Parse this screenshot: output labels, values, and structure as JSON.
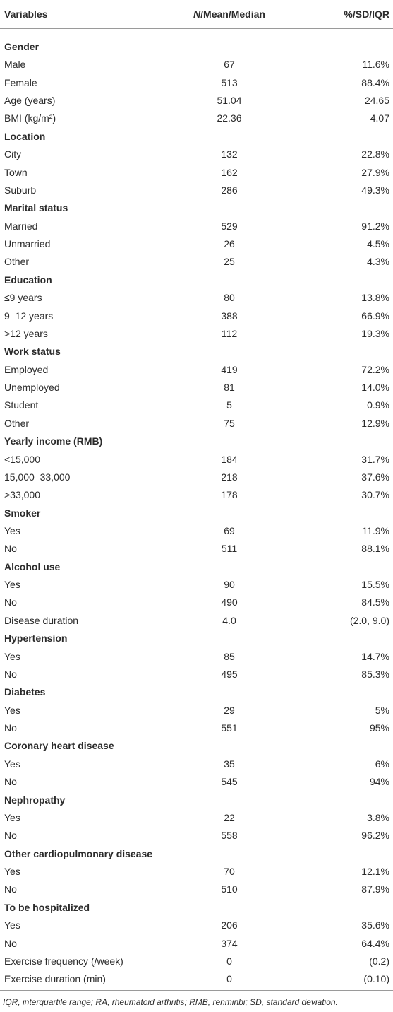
{
  "header": [
    "Variables",
    [
      "N",
      "/Mean/Median"
    ],
    "%/SD/IQR"
  ],
  "rows": [
    [
      "Gender"
    ],
    [
      "Male",
      "67",
      "11.6%"
    ],
    [
      "Female",
      "513",
      "88.4%"
    ],
    [
      "Age (years)",
      "51.04",
      "24.65"
    ],
    [
      "BMI (kg/m²)",
      "22.36",
      "4.07"
    ],
    [
      "Location"
    ],
    [
      "City",
      "132",
      "22.8%"
    ],
    [
      "Town",
      "162",
      "27.9%"
    ],
    [
      "Suburb",
      "286",
      "49.3%"
    ],
    [
      "Marital status"
    ],
    [
      "Married",
      "529",
      "91.2%"
    ],
    [
      "Unmarried",
      "26",
      "4.5%"
    ],
    [
      "Other",
      "25",
      "4.3%"
    ],
    [
      "Education"
    ],
    [
      "≤9 years",
      "80",
      "13.8%"
    ],
    [
      "9–12 years",
      "388",
      "66.9%"
    ],
    [
      ">12 years",
      "112",
      "19.3%"
    ],
    [
      "Work status"
    ],
    [
      "Employed",
      "419",
      "72.2%"
    ],
    [
      "Unemployed",
      "81",
      "14.0%"
    ],
    [
      "Student",
      "5",
      "0.9%"
    ],
    [
      "Other",
      "75",
      "12.9%"
    ],
    [
      "Yearly income (RMB)"
    ],
    [
      "<15,000",
      "184",
      "31.7%"
    ],
    [
      "15,000–33,000",
      "218",
      "37.6%"
    ],
    [
      ">33,000",
      "178",
      "30.7%"
    ],
    [
      "Smoker"
    ],
    [
      "Yes",
      "69",
      "11.9%"
    ],
    [
      "No",
      "511",
      "88.1%"
    ],
    [
      "Alcohol use"
    ],
    [
      "Yes",
      "90",
      "15.5%"
    ],
    [
      "No",
      "490",
      "84.5%"
    ],
    [
      "Disease duration",
      "4.0",
      "(2.0, 9.0)"
    ],
    [
      "Hypertension"
    ],
    [
      "Yes",
      "85",
      "14.7%"
    ],
    [
      "No",
      "495",
      "85.3%"
    ],
    [
      "Diabetes"
    ],
    [
      "Yes",
      "29",
      "5%"
    ],
    [
      "No",
      "551",
      "95%"
    ],
    [
      "Coronary heart disease"
    ],
    [
      "Yes",
      "35",
      "6%"
    ],
    [
      "No",
      "545",
      "94%"
    ],
    [
      "Nephropathy"
    ],
    [
      "Yes",
      "22",
      "3.8%"
    ],
    [
      "No",
      "558",
      "96.2%"
    ],
    [
      "Other cardiopulmonary disease"
    ],
    [
      "Yes",
      "70",
      "12.1%"
    ],
    [
      "No",
      "510",
      "87.9%"
    ],
    [
      "To be hospitalized"
    ],
    [
      "Yes",
      "206",
      "35.6%"
    ],
    [
      "No",
      "374",
      "64.4%"
    ],
    [
      "Exercise frequency (/week)",
      "0",
      "(0.2)"
    ],
    [
      "Exercise duration (min)",
      "0",
      "(0.10)"
    ]
  ],
  "footnote": "IQR, interquartile range; RA, rheumatoid arthritis; RMB, renminbi; SD, standard deviation."
}
